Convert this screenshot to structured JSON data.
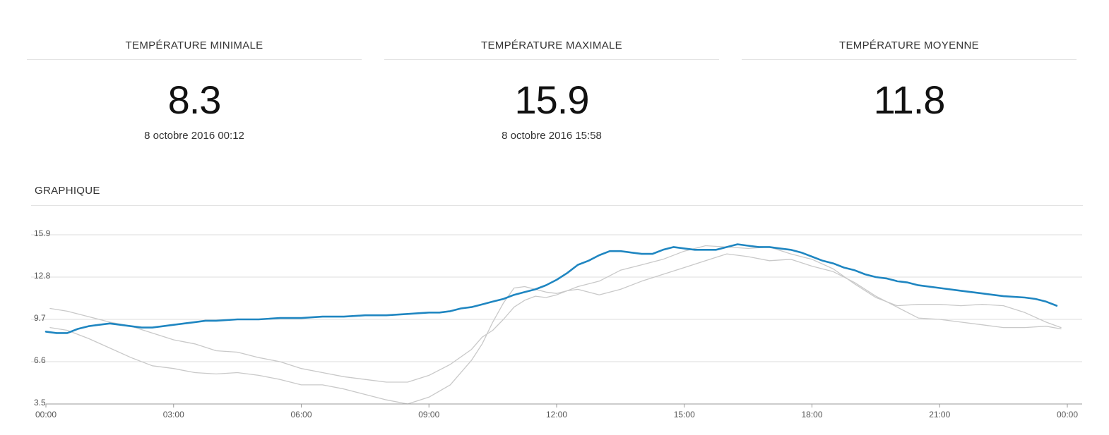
{
  "stats": [
    {
      "title": "TEMPÉRATURE MINIMALE",
      "value": "8.3",
      "date": "8 octobre 2016 00:12"
    },
    {
      "title": "TEMPÉRATURE MAXIMALE",
      "value": "15.9",
      "date": "8 octobre 2016 15:58"
    },
    {
      "title": "TEMPÉRATURE MOYENNE",
      "value": "11.8",
      "date": ""
    }
  ],
  "section": {
    "title": "GRAPHIQUE"
  },
  "chart_data": {
    "type": "line",
    "x_unit": "hours",
    "xlim": [
      0,
      24
    ],
    "ylim": [
      3.5,
      15.9
    ],
    "x_ticks": [
      "00:00",
      "03:00",
      "06:00",
      "09:00",
      "12:00",
      "15:00",
      "18:00",
      "21:00",
      "00:00"
    ],
    "y_ticks": [
      {
        "value": 3.5,
        "label": "3.5"
      },
      {
        "value": 6.6,
        "label": "6.6"
      },
      {
        "value": 9.7,
        "label": "9.7"
      },
      {
        "value": 12.8,
        "label": "12.8"
      },
      {
        "value": 15.9,
        "label": "15.9"
      }
    ],
    "grid": true,
    "colors": {
      "main": "#1f86c1",
      "secondary": "#c9c9c9",
      "grid": "#dcdcdc",
      "axis": "#9a9a9a",
      "label": "#555555"
    },
    "series": [
      {
        "role": "main",
        "points": [
          [
            0.0,
            8.8
          ],
          [
            0.25,
            8.7
          ],
          [
            0.5,
            8.7
          ],
          [
            0.75,
            9.0
          ],
          [
            1.0,
            9.2
          ],
          [
            1.25,
            9.3
          ],
          [
            1.5,
            9.4
          ],
          [
            1.75,
            9.3
          ],
          [
            2.0,
            9.2
          ],
          [
            2.25,
            9.1
          ],
          [
            2.5,
            9.1
          ],
          [
            2.75,
            9.2
          ],
          [
            3.0,
            9.3
          ],
          [
            3.25,
            9.4
          ],
          [
            3.5,
            9.5
          ],
          [
            3.75,
            9.6
          ],
          [
            4.0,
            9.6
          ],
          [
            4.5,
            9.7
          ],
          [
            5.0,
            9.7
          ],
          [
            5.5,
            9.8
          ],
          [
            6.0,
            9.8
          ],
          [
            6.5,
            9.9
          ],
          [
            7.0,
            9.9
          ],
          [
            7.5,
            10.0
          ],
          [
            8.0,
            10.0
          ],
          [
            8.5,
            10.1
          ],
          [
            9.0,
            10.2
          ],
          [
            9.25,
            10.2
          ],
          [
            9.5,
            10.3
          ],
          [
            9.75,
            10.5
          ],
          [
            10.0,
            10.6
          ],
          [
            10.25,
            10.8
          ],
          [
            10.5,
            11.0
          ],
          [
            10.75,
            11.2
          ],
          [
            11.0,
            11.5
          ],
          [
            11.25,
            11.7
          ],
          [
            11.5,
            11.9
          ],
          [
            11.75,
            12.2
          ],
          [
            12.0,
            12.6
          ],
          [
            12.25,
            13.1
          ],
          [
            12.5,
            13.7
          ],
          [
            12.75,
            14.0
          ],
          [
            13.0,
            14.4
          ],
          [
            13.25,
            14.7
          ],
          [
            13.5,
            14.7
          ],
          [
            13.75,
            14.6
          ],
          [
            14.0,
            14.5
          ],
          [
            14.25,
            14.5
          ],
          [
            14.5,
            14.8
          ],
          [
            14.75,
            15.0
          ],
          [
            15.0,
            14.9
          ],
          [
            15.25,
            14.8
          ],
          [
            15.5,
            14.8
          ],
          [
            15.75,
            14.8
          ],
          [
            16.0,
            15.0
          ],
          [
            16.25,
            15.2
          ],
          [
            16.5,
            15.1
          ],
          [
            16.75,
            15.0
          ],
          [
            17.0,
            15.0
          ],
          [
            17.25,
            14.9
          ],
          [
            17.5,
            14.8
          ],
          [
            17.75,
            14.6
          ],
          [
            18.0,
            14.3
          ],
          [
            18.25,
            14.0
          ],
          [
            18.5,
            13.8
          ],
          [
            18.75,
            13.5
          ],
          [
            19.0,
            13.3
          ],
          [
            19.25,
            13.0
          ],
          [
            19.5,
            12.8
          ],
          [
            19.75,
            12.7
          ],
          [
            20.0,
            12.5
          ],
          [
            20.25,
            12.4
          ],
          [
            20.5,
            12.2
          ],
          [
            21.0,
            12.0
          ],
          [
            21.5,
            11.8
          ],
          [
            22.0,
            11.6
          ],
          [
            22.5,
            11.4
          ],
          [
            23.0,
            11.3
          ],
          [
            23.25,
            11.2
          ],
          [
            23.5,
            11.0
          ],
          [
            23.75,
            10.7
          ]
        ]
      },
      {
        "role": "secondary",
        "points": [
          [
            0.1,
            10.5
          ],
          [
            0.5,
            10.3
          ],
          [
            1.0,
            9.9
          ],
          [
            1.5,
            9.5
          ],
          [
            2.0,
            9.2
          ],
          [
            2.5,
            8.7
          ],
          [
            3.0,
            8.2
          ],
          [
            3.5,
            7.9
          ],
          [
            4.0,
            7.4
          ],
          [
            4.5,
            7.3
          ],
          [
            5.0,
            6.9
          ],
          [
            5.5,
            6.6
          ],
          [
            6.0,
            6.1
          ],
          [
            6.5,
            5.8
          ],
          [
            7.0,
            5.5
          ],
          [
            7.5,
            5.3
          ],
          [
            8.0,
            5.1
          ],
          [
            8.5,
            5.1
          ],
          [
            9.0,
            5.6
          ],
          [
            9.5,
            6.4
          ],
          [
            10.0,
            7.5
          ],
          [
            10.25,
            8.4
          ],
          [
            10.5,
            8.9
          ],
          [
            10.75,
            9.7
          ],
          [
            11.0,
            10.6
          ],
          [
            11.25,
            11.1
          ],
          [
            11.5,
            11.4
          ],
          [
            11.75,
            11.3
          ],
          [
            12.0,
            11.5
          ],
          [
            12.25,
            11.8
          ],
          [
            12.5,
            12.1
          ],
          [
            13.0,
            12.5
          ],
          [
            13.5,
            13.3
          ],
          [
            14.0,
            13.7
          ],
          [
            14.5,
            14.1
          ],
          [
            15.0,
            14.7
          ],
          [
            15.5,
            15.1
          ],
          [
            16.0,
            15.0
          ],
          [
            16.5,
            14.9
          ],
          [
            17.0,
            15.0
          ],
          [
            17.5,
            14.5
          ],
          [
            18.0,
            14.1
          ],
          [
            18.5,
            13.4
          ],
          [
            19.0,
            12.3
          ],
          [
            19.5,
            11.3
          ],
          [
            20.0,
            10.7
          ],
          [
            20.5,
            10.8
          ],
          [
            21.0,
            10.8
          ],
          [
            21.5,
            10.7
          ],
          [
            22.0,
            10.8
          ],
          [
            22.5,
            10.7
          ],
          [
            23.0,
            10.2
          ],
          [
            23.5,
            9.5
          ],
          [
            23.85,
            9.1
          ]
        ]
      },
      {
        "role": "secondary",
        "points": [
          [
            0.1,
            9.1
          ],
          [
            0.5,
            8.9
          ],
          [
            1.0,
            8.3
          ],
          [
            1.5,
            7.6
          ],
          [
            2.0,
            6.9
          ],
          [
            2.5,
            6.3
          ],
          [
            3.0,
            6.1
          ],
          [
            3.5,
            5.8
          ],
          [
            4.0,
            5.7
          ],
          [
            4.5,
            5.8
          ],
          [
            5.0,
            5.6
          ],
          [
            5.5,
            5.3
          ],
          [
            6.0,
            4.9
          ],
          [
            6.5,
            4.9
          ],
          [
            7.0,
            4.6
          ],
          [
            7.5,
            4.2
          ],
          [
            8.0,
            3.8
          ],
          [
            8.5,
            3.5
          ],
          [
            9.0,
            4.0
          ],
          [
            9.5,
            4.9
          ],
          [
            10.0,
            6.7
          ],
          [
            10.25,
            7.9
          ],
          [
            10.5,
            9.5
          ],
          [
            10.75,
            10.9
          ],
          [
            11.0,
            12.0
          ],
          [
            11.25,
            12.1
          ],
          [
            11.5,
            11.9
          ],
          [
            11.75,
            11.7
          ],
          [
            12.0,
            11.6
          ],
          [
            12.25,
            11.8
          ],
          [
            12.5,
            11.9
          ],
          [
            13.0,
            11.5
          ],
          [
            13.5,
            11.9
          ],
          [
            14.0,
            12.5
          ],
          [
            14.5,
            13.0
          ],
          [
            15.0,
            13.5
          ],
          [
            15.5,
            14.0
          ],
          [
            16.0,
            14.5
          ],
          [
            16.5,
            14.3
          ],
          [
            17.0,
            14.0
          ],
          [
            17.5,
            14.1
          ],
          [
            18.0,
            13.6
          ],
          [
            18.5,
            13.2
          ],
          [
            19.0,
            12.4
          ],
          [
            19.5,
            11.4
          ],
          [
            20.0,
            10.6
          ],
          [
            20.5,
            9.8
          ],
          [
            21.0,
            9.7
          ],
          [
            21.5,
            9.5
          ],
          [
            22.0,
            9.3
          ],
          [
            22.5,
            9.1
          ],
          [
            23.0,
            9.1
          ],
          [
            23.5,
            9.2
          ],
          [
            23.85,
            9.0
          ]
        ]
      }
    ]
  }
}
